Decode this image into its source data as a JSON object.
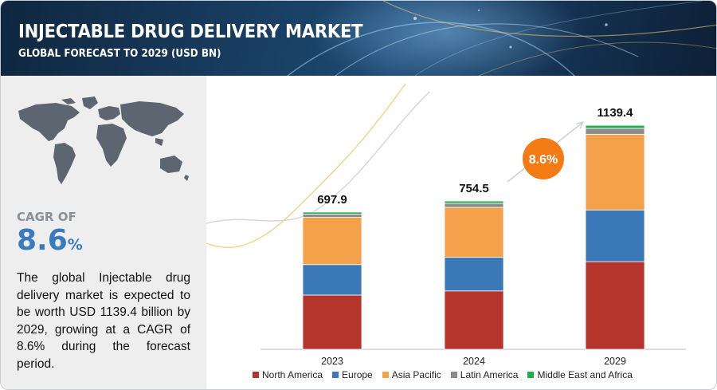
{
  "header": {
    "title": "INJECTABLE DRUG DELIVERY MARKET",
    "subtitle": "GLOBAL FORECAST TO 2029 (USD BN)"
  },
  "cagr": {
    "label": "CAGR OF",
    "value": "8.6",
    "unit": "%"
  },
  "description": "The global Injectable drug delivery market is expected to be worth USD 1139.4 billion by 2029, growing at a CAGR of 8.6% during the forecast period.",
  "colors": {
    "north_america": "#b5342c",
    "europe": "#3b78b8",
    "asia_pacific": "#f5a04b",
    "latin_america": "#8c8c8c",
    "middle_east_africa": "#1fae4c",
    "cagr_badge": "#f47a14"
  },
  "chart_data": {
    "type": "bar",
    "stacked": true,
    "categories": [
      "2023",
      "2024",
      "2029"
    ],
    "totals": [
      "697.9",
      "754.5",
      "1139.4"
    ],
    "total_values": [
      697.9,
      754.5,
      1139.4
    ],
    "series": [
      {
        "name": "North America",
        "color": "#b5342c",
        "values": [
          276,
          297,
          446
        ]
      },
      {
        "name": "Europe",
        "color": "#3b78b8",
        "values": [
          155,
          171,
          263
        ]
      },
      {
        "name": "Asia Pacific",
        "color": "#f5a04b",
        "values": [
          240,
          254,
          385
        ]
      },
      {
        "name": "Latin America",
        "color": "#8c8c8c",
        "values": [
          17,
          21,
          30
        ]
      },
      {
        "name": "Middle East and Africa",
        "color": "#1fae4c",
        "values": [
          9.9,
          11.5,
          15.4
        ]
      }
    ],
    "annotation": "8.6%",
    "ylim": [
      0,
      1140
    ]
  }
}
